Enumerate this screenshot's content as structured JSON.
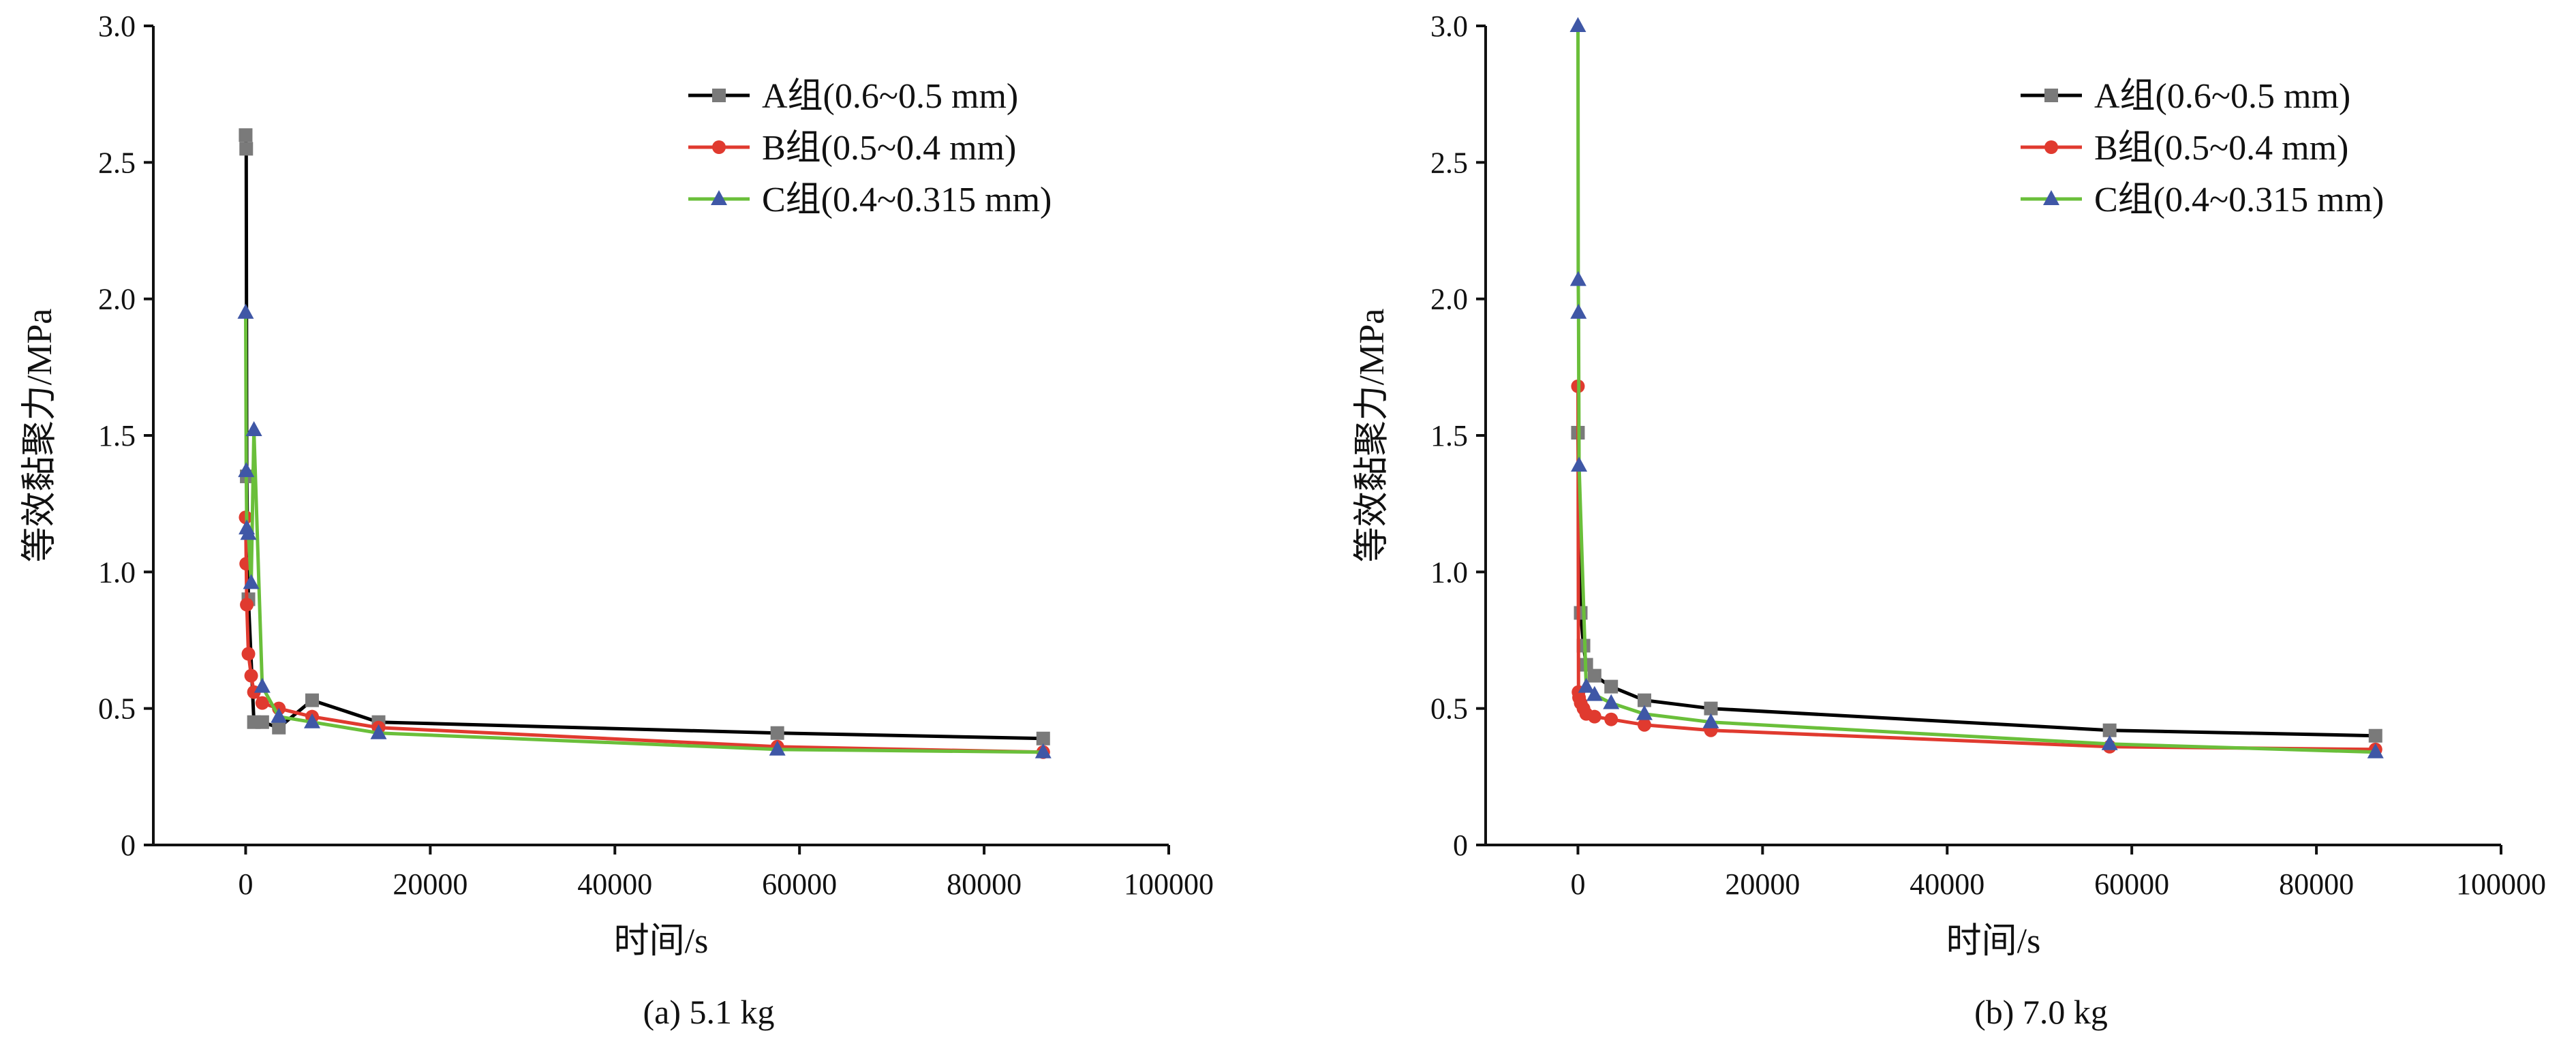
{
  "chart_data": [
    {
      "type": "line",
      "caption": "(a) 5.1 kg",
      "xlabel": "时间/s",
      "ylabel": "等效黏聚力/MPa",
      "xlim": [
        -10000,
        100000
      ],
      "ylim": [
        0,
        3.0
      ],
      "xticks": [
        0,
        20000,
        40000,
        60000,
        80000,
        100000
      ],
      "xtick_labels": [
        "0",
        "20000",
        "40000",
        "60000",
        "80000",
        "100000"
      ],
      "yticks": [
        0,
        0.5,
        1.0,
        1.5,
        2.0,
        2.5,
        3.0
      ],
      "ytick_labels": [
        "0",
        "0.5",
        "1.0",
        "1.5",
        "2.0",
        "2.5",
        "3.0"
      ],
      "legend_position": "top-right",
      "grid": false,
      "series": [
        {
          "name": "A组(0.6~0.5 mm)",
          "color": "#000000",
          "marker": "square",
          "marker_color": "#7a7a7a",
          "x": [
            0,
            60,
            120,
            300,
            900,
            1800,
            3600,
            7200,
            14400,
            57600,
            86400
          ],
          "y": [
            2.6,
            2.55,
            1.35,
            0.9,
            0.45,
            0.45,
            0.43,
            0.53,
            0.45,
            0.41,
            0.39
          ]
        },
        {
          "name": "B组(0.5~0.4 mm)",
          "color": "#e03a2f",
          "marker": "circle",
          "marker_color": "#e03a2f",
          "x": [
            0,
            60,
            120,
            300,
            600,
            900,
            1800,
            3600,
            7200,
            14400,
            57600,
            86400
          ],
          "y": [
            1.2,
            1.03,
            0.88,
            0.7,
            0.62,
            0.56,
            0.52,
            0.5,
            0.47,
            0.43,
            0.36,
            0.34
          ]
        },
        {
          "name": "C组(0.4~0.315 mm)",
          "color": "#6abf3a",
          "marker": "triangle",
          "marker_color": "#3f57a6",
          "x": [
            0,
            60,
            120,
            300,
            600,
            900,
            1800,
            3600,
            7200,
            14400,
            57600,
            86400
          ],
          "y": [
            1.95,
            1.37,
            1.16,
            1.14,
            0.96,
            1.52,
            0.58,
            0.47,
            0.45,
            0.41,
            0.35,
            0.34
          ]
        }
      ]
    },
    {
      "type": "line",
      "caption": "(b) 7.0 kg",
      "xlabel": "时间/s",
      "ylabel": "等效黏聚力/MPa",
      "xlim": [
        -10000,
        100000
      ],
      "ylim": [
        0,
        3.0
      ],
      "xticks": [
        0,
        20000,
        40000,
        60000,
        80000,
        100000
      ],
      "xtick_labels": [
        "0",
        "20000",
        "40000",
        "60000",
        "80000",
        "100000"
      ],
      "yticks": [
        0,
        0.5,
        1.0,
        1.5,
        2.0,
        2.5,
        3.0
      ],
      "ytick_labels": [
        "0",
        "0.5",
        "1.0",
        "1.5",
        "2.0",
        "2.5",
        "3.0"
      ],
      "legend_position": "top-right",
      "grid": false,
      "series": [
        {
          "name": "A组(0.6~0.5 mm)",
          "color": "#000000",
          "marker": "square",
          "marker_color": "#7a7a7a",
          "x": [
            0,
            300,
            600,
            900,
            1800,
            3600,
            7200,
            14400,
            57600,
            86400
          ],
          "y": [
            1.51,
            0.85,
            0.73,
            0.66,
            0.62,
            0.58,
            0.53,
            0.5,
            0.42,
            0.4
          ]
        },
        {
          "name": "B组(0.5~0.4 mm)",
          "color": "#e03a2f",
          "marker": "circle",
          "marker_color": "#e03a2f",
          "x": [
            0,
            60,
            120,
            300,
            600,
            900,
            1800,
            3600,
            7200,
            14400,
            57600,
            86400
          ],
          "y": [
            1.68,
            0.56,
            0.54,
            0.52,
            0.5,
            0.48,
            0.47,
            0.46,
            0.44,
            0.42,
            0.36,
            0.35
          ]
        },
        {
          "name": "C组(0.4~0.315 mm)",
          "color": "#6abf3a",
          "marker": "triangle",
          "marker_color": "#3f57a6",
          "x": [
            0,
            30,
            60,
            120,
            900,
            1800,
            3600,
            7200,
            14400,
            57600,
            86400
          ],
          "y": [
            3.0,
            2.07,
            1.95,
            1.39,
            0.58,
            0.55,
            0.52,
            0.48,
            0.45,
            0.37,
            0.34
          ]
        }
      ]
    }
  ]
}
